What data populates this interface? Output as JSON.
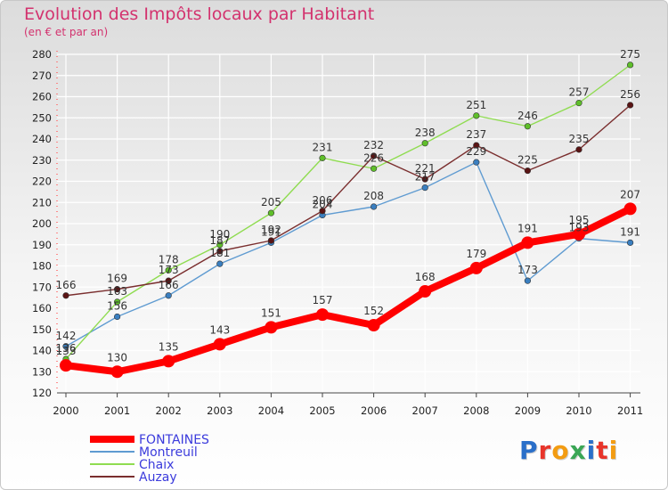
{
  "title": "Evolution des Impôts locaux par Habitant",
  "subtitle": "(en € et par an)",
  "logo": {
    "letters": [
      "P",
      "r",
      "o",
      "x",
      "i",
      "t",
      "i"
    ],
    "colors": [
      "#2a6fc9",
      "#e8352b",
      "#f39c12",
      "#3aa655",
      "#2a6fc9",
      "#e8352b",
      "#f39c12"
    ]
  },
  "chart_data": {
    "type": "line",
    "title": "Evolution des Impôts locaux par Habitant",
    "subtitle": "(en € et par an)",
    "xlabel": "",
    "ylabel": "",
    "x": [
      "2000",
      "2001",
      "2002",
      "2003",
      "2004",
      "2005",
      "2006",
      "2007",
      "2008",
      "2009",
      "2010",
      "2011"
    ],
    "ylim": [
      120,
      280
    ],
    "yticks": [
      "120",
      "130",
      "140",
      "150",
      "160",
      "170",
      "180",
      "190",
      "200",
      "210",
      "220",
      "230",
      "240",
      "250",
      "260",
      "270",
      "280"
    ],
    "grid": true,
    "legend_position": "bottom-left",
    "series": [
      {
        "name": "FONTAINES",
        "color": "#ff0000",
        "marker": "#ff0000",
        "values": [
          133,
          130,
          135,
          143,
          151,
          157,
          152,
          168,
          179,
          191,
          195,
          207
        ],
        "emphasis": true
      },
      {
        "name": "Montreuil",
        "color": "#5f9bd1",
        "marker": "#3a7fc0",
        "values": [
          142,
          156,
          166,
          181,
          191,
          204,
          208,
          217,
          229,
          173,
          193,
          191
        ]
      },
      {
        "name": "Chaix",
        "color": "#8fdc50",
        "marker": "#5fbf2a",
        "values": [
          136,
          163,
          178,
          190,
          205,
          231,
          226,
          238,
          251,
          246,
          257,
          275
        ]
      },
      {
        "name": "Auzay",
        "color": "#7a2e2e",
        "marker": "#5a1414",
        "values": [
          166,
          169,
          173,
          187,
          192,
          206,
          232,
          221,
          237,
          225,
          235,
          256
        ]
      }
    ]
  }
}
